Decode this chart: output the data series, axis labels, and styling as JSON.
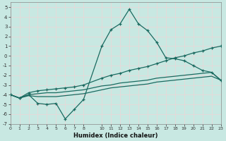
{
  "xlabel": "Humidex (Indice chaleur)",
  "bg_color": "#c8e8e2",
  "grid_color": "#b8d8d0",
  "line_color": "#1a6a60",
  "xlim": [
    0,
    23
  ],
  "ylim": [
    -7,
    5.5
  ],
  "yticks": [
    -7,
    -6,
    -5,
    -4,
    -3,
    -2,
    -1,
    0,
    1,
    2,
    3,
    4,
    5
  ],
  "xticks": [
    0,
    1,
    2,
    3,
    4,
    5,
    6,
    7,
    8,
    10,
    11,
    12,
    13,
    14,
    15,
    16,
    17,
    18,
    19,
    20,
    21,
    22,
    23
  ],
  "line_peak_x": [
    0,
    1,
    2,
    3,
    4,
    5,
    6,
    7,
    8,
    10,
    11,
    12,
    13,
    14,
    15,
    16,
    17,
    18,
    19,
    20,
    21,
    22,
    23
  ],
  "line_peak_y": [
    -4.0,
    -4.35,
    -4.0,
    -4.9,
    -5.0,
    -4.9,
    -6.5,
    -5.5,
    -4.5,
    1.0,
    2.7,
    3.3,
    4.8,
    3.3,
    2.6,
    1.4,
    -0.2,
    -0.3,
    -0.5,
    -1.0,
    -1.5,
    -1.7,
    -2.5
  ],
  "line_top_x": [
    0,
    1,
    2,
    3,
    4,
    5,
    6,
    7,
    8,
    10,
    11,
    12,
    13,
    14,
    15,
    16,
    17,
    18,
    19,
    20,
    21,
    22,
    23
  ],
  "line_top_y": [
    -4.0,
    -4.35,
    -3.8,
    -3.6,
    -3.5,
    -3.4,
    -3.3,
    -3.2,
    -3.0,
    -2.3,
    -2.0,
    -1.8,
    -1.5,
    -1.3,
    -1.1,
    -0.8,
    -0.5,
    -0.2,
    0.0,
    0.3,
    0.5,
    0.8,
    1.0
  ],
  "line_mid_x": [
    0,
    1,
    2,
    3,
    4,
    5,
    6,
    7,
    8,
    10,
    11,
    12,
    13,
    14,
    15,
    16,
    17,
    18,
    19,
    20,
    21,
    22,
    23
  ],
  "line_mid_y": [
    -4.0,
    -4.35,
    -4.0,
    -3.9,
    -3.8,
    -3.8,
    -3.7,
    -3.6,
    -3.5,
    -3.1,
    -3.0,
    -2.8,
    -2.7,
    -2.6,
    -2.5,
    -2.3,
    -2.2,
    -2.1,
    -2.0,
    -1.9,
    -1.8,
    -1.7,
    -2.5
  ],
  "line_bot_x": [
    0,
    1,
    2,
    3,
    4,
    5,
    6,
    7,
    8,
    10,
    11,
    12,
    13,
    14,
    15,
    16,
    17,
    18,
    19,
    20,
    21,
    22,
    23
  ],
  "line_bot_y": [
    -4.0,
    -4.35,
    -4.1,
    -4.2,
    -4.2,
    -4.2,
    -4.1,
    -4.0,
    -3.9,
    -3.5,
    -3.3,
    -3.2,
    -3.1,
    -3.0,
    -2.9,
    -2.7,
    -2.6,
    -2.5,
    -2.4,
    -2.3,
    -2.2,
    -2.1,
    -2.5
  ]
}
